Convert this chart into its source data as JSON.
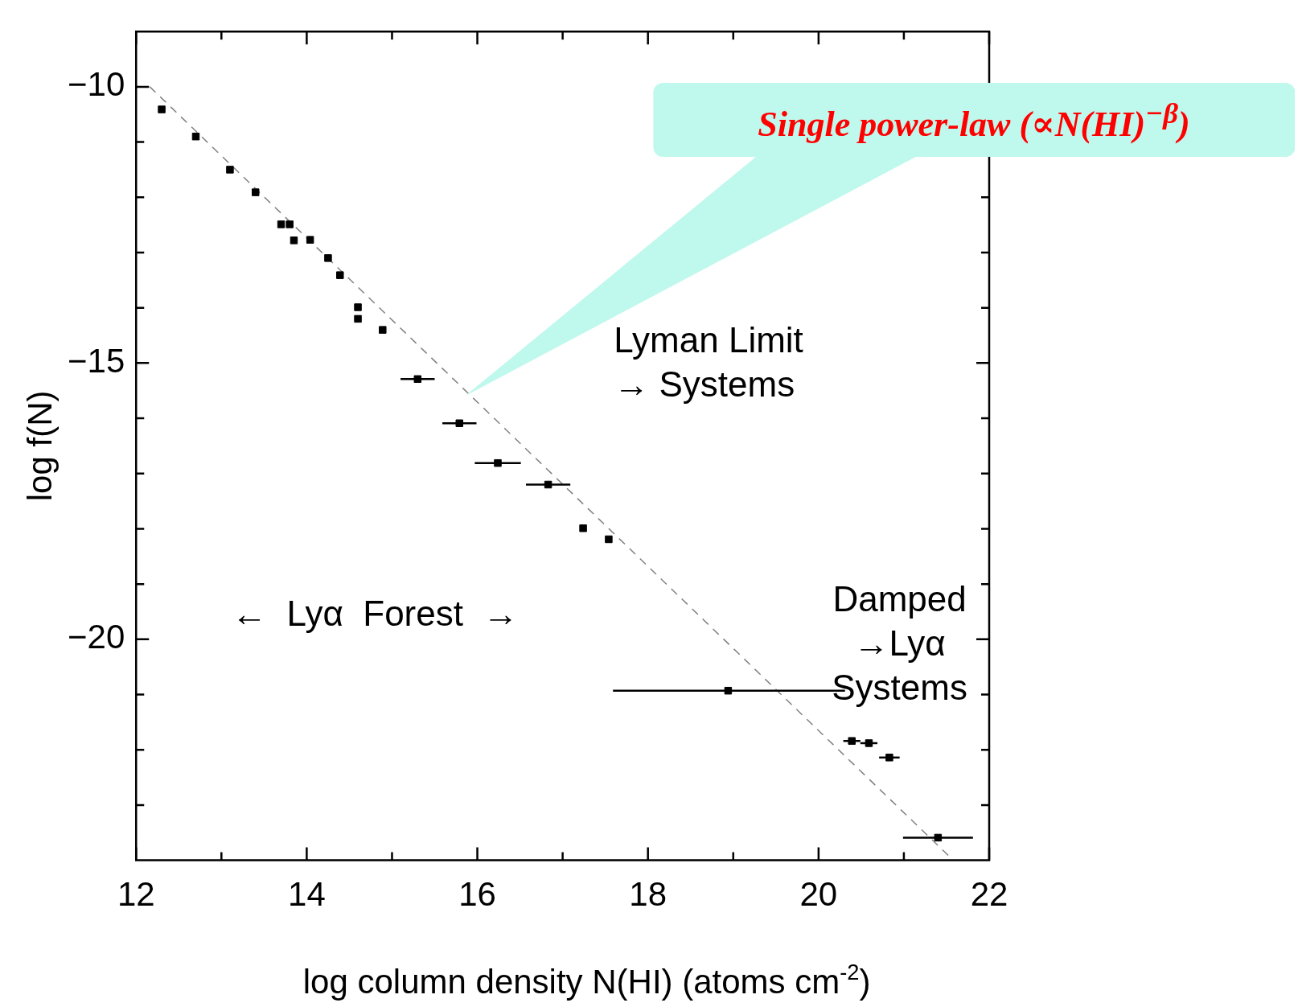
{
  "chart_data": {
    "type": "scatter",
    "xlabel": "log column density N(HI) (atoms cm$^{-2}$)",
    "ylabel": "log f(N)",
    "xlim": [
      12,
      22
    ],
    "ylim": [
      -24,
      -9
    ],
    "xticks": [
      12,
      {
        "value": 13,
        "label": null
      },
      14,
      {
        "value": 15,
        "label": null
      },
      16,
      {
        "value": 17,
        "label": null
      },
      18,
      {
        "value": 19,
        "label": null
      },
      20,
      {
        "value": 21,
        "label": null
      },
      22
    ],
    "yticks": [
      {
        "value": -23,
        "label": null
      },
      {
        "value": -22,
        "label": null
      },
      {
        "value": -21,
        "label": null
      },
      {
        "value": -20,
        "label": "−20"
      },
      {
        "value": -19,
        "label": null
      },
      {
        "value": -18,
        "label": null
      },
      {
        "value": -17,
        "label": null
      },
      {
        "value": -16,
        "label": null
      },
      {
        "value": -15,
        "label": "−15"
      },
      {
        "value": -14,
        "label": null
      },
      {
        "value": -13,
        "label": null
      },
      {
        "value": -12,
        "label": null
      },
      {
        "value": -11,
        "label": null
      },
      {
        "value": -10,
        "label": "−10"
      }
    ],
    "grid": false,
    "legend": false,
    "marker": "square",
    "annotations": [
      "Single power-law (∝N(HI)$^{−β}$)",
      "Lyman Limit\n→ Systems",
      "←  Lyα  Forest  →",
      "Damped\n→Lyα\nSystems"
    ],
    "series": [
      {
        "color": "#000000",
        "x": [
          12.3,
          12.7,
          13.1,
          13.4,
          13.7,
          13.8,
          13.85,
          14.04,
          14.25,
          14.39,
          14.6,
          14.6,
          14.89,
          15.3,
          15.79,
          16.24,
          16.83,
          17.24,
          17.54,
          18.94,
          20.39,
          20.59,
          20.83,
          21.4
        ],
        "values": [
          -10.41,
          -10.9,
          -11.5,
          -11.91,
          -12.49,
          -12.49,
          -12.78,
          -12.77,
          -13.1,
          -13.41,
          -13.99,
          -14.2,
          -14.4,
          -15.29,
          -16.09,
          -16.81,
          -17.2,
          -17.99,
          -18.19,
          -20.93,
          -21.84,
          -21.88,
          -22.14,
          -23.59
        ],
        "xerrors": [
          null,
          null,
          null,
          null,
          null,
          null,
          null,
          null,
          null,
          null,
          null,
          null,
          null,
          0.2,
          0.2,
          0.27,
          0.26,
          null,
          null,
          [
            17.59,
            20.31
          ],
          0.1,
          0.1,
          0.12,
          [
            20.99,
            21.81
          ]
        ]
      },
      {
        "type": "line",
        "color": "#808080",
        "line_style": "dashed",
        "marker": "none",
        "x": [
          12.16,
          21.58
        ],
        "values": [
          -10,
          -24
        ]
      }
    ]
  }
}
